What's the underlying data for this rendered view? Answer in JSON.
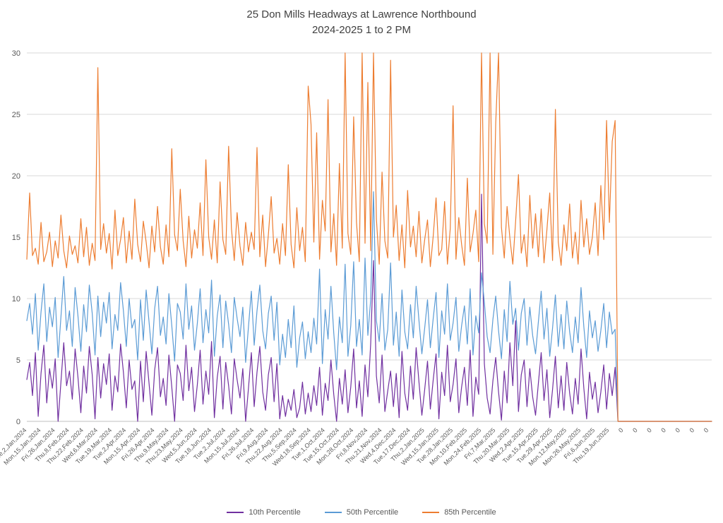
{
  "title": {
    "line1": "25 Don Mills Headways at Lawrence Northbound",
    "line2": "2024-2025 1 to 2 PM"
  },
  "chart_data": {
    "type": "line",
    "title": "25 Don Mills Headways at Lawrence Northbound 2024-2025 1 to 2 PM",
    "xlabel": "",
    "ylabel": "",
    "ylim": [
      0,
      30
    ],
    "y_ticks": [
      0,
      5,
      10,
      15,
      20,
      25,
      30
    ],
    "grid": true,
    "legend_position": "bottom",
    "n_points": 242,
    "x_tick_indices": [
      0,
      5,
      10,
      15,
      20,
      25,
      30,
      35,
      40,
      45,
      50,
      55,
      60,
      65,
      70,
      75,
      80,
      85,
      90,
      95,
      100,
      105,
      110,
      115,
      120,
      125,
      130,
      135,
      140,
      145,
      150,
      155,
      160,
      165,
      170,
      175,
      180,
      185,
      190,
      195,
      200,
      205,
      210,
      215,
      220,
      225,
      230,
      235,
      240
    ],
    "x_tick_labels": [
      "Tue,2,Jan,2024",
      "Mon,15,Jan,2024",
      "Fri,26,Jan,2024",
      "Thu,8,Feb,2024",
      "Thu,22,Feb,2024",
      "Wed,6,Mar,2024",
      "Tue,19,Mar,2024",
      "Tue,2,Apr,2024",
      "Mon,15,Apr,2024",
      "Fri,26,Apr,2024",
      "Thu,9,May,2024",
      "Thu,23,May,2024",
      "Wed,5,Jun,2024",
      "Tue,18,Jun,2024",
      "Tue,2,Jul,2024",
      "Mon,15,Jul,2024",
      "Fri,26,Jul,2024",
      "Fri,9,Aug,2024",
      "Thu,22,Aug,2024",
      "Thu,5,Sep,2024",
      "Wed,18,Sep,2024",
      "Tue,1,Oct,2024",
      "Tue,15,Oct,2024",
      "Mon,28,Oct,2024",
      "Fri,8,Nov,2024",
      "Thu,21,Nov,2024",
      "Wed,4,Dec,2024",
      "Tue,17,Dec,2024",
      "Thu,2,Jan,2025",
      "Wed,15,Jan,2025",
      "Tue,28,Jan,2025",
      "Mon,10,Feb,2025",
      "Mon,24,Feb,2025",
      "Fri,7,Mar,2025",
      "Thu,20,Mar,2025",
      "Wed,2,Apr,2025",
      "Tue,15,Apr,2025",
      "Tue,29,Apr,2025",
      "Mon,12,May,2025",
      "Mon,26,May,2025",
      "Fri,6,Jun,2025",
      "Thu,19,Jun,2025",
      "0",
      "0",
      "0",
      "0",
      "0",
      "0",
      "0"
    ],
    "series": [
      {
        "name": "10th Percentile",
        "color": "#7030A0",
        "values": [
          3.4,
          4.8,
          2.1,
          5.6,
          0.4,
          3.9,
          6.2,
          1.5,
          4.3,
          2.7,
          5.1,
          0,
          3.2,
          6.4,
          2.9,
          4.1,
          1.8,
          5.9,
          3.6,
          0.7,
          4.5,
          2.3,
          6.1,
          3.8,
          0.2,
          5.2,
          1.9,
          4.7,
          3.0,
          5.5,
          0.9,
          3.7,
          2.4,
          6.3,
          4.0,
          1.1,
          5.0,
          2.6,
          3.3,
          0,
          4.9,
          1.6,
          5.7,
          3.1,
          0.5,
          4.2,
          6.0,
          2.0,
          3.5,
          1.3,
          5.4,
          2.8,
          0,
          4.6,
          3.9,
          1.7,
          6.2,
          2.5,
          4.4,
          0.8,
          3.0,
          5.8,
          1.4,
          4.1,
          2.2,
          6.5,
          0.3,
          3.6,
          5.3,
          1.0,
          4.8,
          2.9,
          0.6,
          5.1,
          3.4,
          1.9,
          4.3,
          0,
          2.7,
          5.6,
          1.2,
          4.0,
          6.1,
          2.4,
          0.9,
          3.8,
          5.2,
          1.6,
          4.7,
          0.2,
          2.1,
          0.4,
          1.8,
          0.9,
          2.6,
          0.3,
          1.1,
          3.2,
          0.6,
          2.3,
          0.8,
          2.9,
          1.3,
          4.4,
          0.5,
          3.1,
          1.7,
          5.0,
          2.2,
          0,
          3.5,
          1.4,
          4.2,
          0.7,
          2.8,
          5.9,
          1.1,
          3.3,
          0.4,
          4.6,
          2.0,
          6.3,
          13.1,
          3.7,
          1.5,
          5.4,
          0.8,
          2.5,
          4.1,
          1.2,
          3.9,
          0.3,
          5.7,
          2.3,
          0.9,
          4.5,
          1.8,
          6.0,
          3.2,
          0.5,
          2.6,
          4.9,
          1.0,
          3.4,
          5.5,
          0.2,
          4.0,
          2.1,
          6.2,
          1.6,
          3.0,
          5.1,
          0.7,
          2.8,
          4.4,
          1.3,
          5.8,
          0.4,
          3.6,
          2.2,
          18.5,
          4.7,
          1.9,
          0.6,
          3.3,
          5.2,
          2.4,
          0.1,
          4.1,
          1.5,
          6.4,
          2.9,
          8.2,
          0.8,
          3.8,
          5.0,
          1.2,
          4.3,
          2.0,
          0.5,
          3.1,
          5.6,
          1.7,
          4.2,
          0.3,
          2.6,
          5.3,
          1.1,
          3.7,
          0.9,
          4.8,
          2.3,
          0.6,
          3.5,
          1.4,
          5.9,
          2.7,
          0.2,
          4.0,
          1.8,
          3.2,
          0.7,
          2.4,
          4.6,
          1.0,
          3.9,
          2.1,
          4.4,
          0,
          0,
          0,
          0,
          0,
          0,
          0,
          0,
          0,
          0,
          0,
          0,
          0,
          0,
          0,
          0,
          0,
          0,
          0,
          0,
          0,
          0,
          0,
          0,
          0,
          0,
          0,
          0,
          0,
          0,
          0,
          0,
          0,
          0
        ]
      },
      {
        "name": "50th Percentile",
        "color": "#5B9BD5",
        "values": [
          8.2,
          9.6,
          7.1,
          10.4,
          5.8,
          8.9,
          11.2,
          6.5,
          9.3,
          7.7,
          10.1,
          5.2,
          8.5,
          11.8,
          7.4,
          9.0,
          6.1,
          10.9,
          8.6,
          5.7,
          9.5,
          7.3,
          11.1,
          8.8,
          5.4,
          10.2,
          6.9,
          9.7,
          8.0,
          10.5,
          5.9,
          8.7,
          7.4,
          11.3,
          9.0,
          6.1,
          10.0,
          7.6,
          8.3,
          5.0,
          9.9,
          6.6,
          10.7,
          8.1,
          5.5,
          9.2,
          11.0,
          7.0,
          8.5,
          6.3,
          10.4,
          7.8,
          4.9,
          9.6,
          8.9,
          6.7,
          11.2,
          7.5,
          9.4,
          5.8,
          8.0,
          10.8,
          6.4,
          9.1,
          7.2,
          11.5,
          5.3,
          8.6,
          10.3,
          6.0,
          9.8,
          7.9,
          5.6,
          10.1,
          8.4,
          6.9,
          9.3,
          4.8,
          7.7,
          10.6,
          6.2,
          9.0,
          11.1,
          7.4,
          5.9,
          8.8,
          10.2,
          6.6,
          9.7,
          4.6,
          7.1,
          5.2,
          8.3,
          6.0,
          9.4,
          4.4,
          6.8,
          8.1,
          5.1,
          7.3,
          5.6,
          8.4,
          6.3,
          12.4,
          4.7,
          9.1,
          6.7,
          11.0,
          7.2,
          4.2,
          8.5,
          6.4,
          12.8,
          5.3,
          7.8,
          13.0,
          6.1,
          8.3,
          5.4,
          13.3,
          7.0,
          9.9,
          18.7,
          8.2,
          6.5,
          10.4,
          5.8,
          7.5,
          12.9,
          6.2,
          8.9,
          5.3,
          10.7,
          7.3,
          5.9,
          9.5,
          6.8,
          11.0,
          8.2,
          5.5,
          7.6,
          9.9,
          6.0,
          8.4,
          10.5,
          5.2,
          9.0,
          7.1,
          11.2,
          6.6,
          8.0,
          10.1,
          5.7,
          7.8,
          9.4,
          6.3,
          10.8,
          5.4,
          8.6,
          7.2,
          12.1,
          9.7,
          6.9,
          5.6,
          8.3,
          10.2,
          7.4,
          5.1,
          9.1,
          6.5,
          11.4,
          7.9,
          9.2,
          5.8,
          8.8,
          10.0,
          6.2,
          9.3,
          7.0,
          5.5,
          8.1,
          10.6,
          6.7,
          9.2,
          5.3,
          7.6,
          10.3,
          6.1,
          8.7,
          5.9,
          9.8,
          7.3,
          5.6,
          8.5,
          6.4,
          10.9,
          7.7,
          5.2,
          9.0,
          6.8,
          8.2,
          5.7,
          7.4,
          9.6,
          6.0,
          8.9,
          7.1,
          7.5,
          0,
          0,
          0,
          0,
          0,
          0,
          0,
          0,
          0,
          0,
          0,
          0,
          0,
          0,
          0,
          0,
          0,
          0,
          0,
          0,
          0,
          0,
          0,
          0,
          0,
          0,
          0,
          0,
          0,
          0,
          0,
          0,
          0,
          0
        ]
      },
      {
        "name": "85th Percentile",
        "color": "#ED7D31",
        "values": [
          13.2,
          18.6,
          13.5,
          14.1,
          12.8,
          16.2,
          13.0,
          13.8,
          15.4,
          12.6,
          14.7,
          13.3,
          16.8,
          13.9,
          12.5,
          15.1,
          13.6,
          14.3,
          12.9,
          16.5,
          13.4,
          15.8,
          12.7,
          14.5,
          13.1,
          28.8,
          14.0,
          16.1,
          13.7,
          15.3,
          12.4,
          17.2,
          13.5,
          14.8,
          16.6,
          12.9,
          15.5,
          13.2,
          18.1,
          14.4,
          13.0,
          16.3,
          14.6,
          12.5,
          15.9,
          13.8,
          17.5,
          14.2,
          12.8,
          16.0,
          13.4,
          22.2,
          15.2,
          13.9,
          18.9,
          14.7,
          12.6,
          16.7,
          13.3,
          15.6,
          14.1,
          17.8,
          13.5,
          21.3,
          15.0,
          13.2,
          16.4,
          12.9,
          19.5,
          14.8,
          13.6,
          22.4,
          15.7,
          13.1,
          17.0,
          14.3,
          12.7,
          16.2,
          13.8,
          15.4,
          14.0,
          22.3,
          13.4,
          16.8,
          12.6,
          15.2,
          18.3,
          13.7,
          14.9,
          12.8,
          16.1,
          13.5,
          20.9,
          14.4,
          12.5,
          17.4,
          13.9,
          15.8,
          13.0,
          27.3,
          24.2,
          14.6,
          23.5,
          13.2,
          18.0,
          15.5,
          26.2,
          13.8,
          16.9,
          12.7,
          21.0,
          14.1,
          30,
          15.3,
          13.6,
          24.8,
          16.2,
          13.0,
          30,
          14.5,
          27.6,
          13.9,
          30,
          16.5,
          12.8,
          20.3,
          14.7,
          13.3,
          29.4,
          15.0,
          17.6,
          13.1,
          16.0,
          12.5,
          18.8,
          14.2,
          15.9,
          13.4,
          17.1,
          12.9,
          14.8,
          16.4,
          12.6,
          15.1,
          18.2,
          13.5,
          14.0,
          17.9,
          12.8,
          15.7,
          25.7,
          13.2,
          16.6,
          14.4,
          12.7,
          19.8,
          13.8,
          15.3,
          17.2,
          13.0,
          30,
          16.1,
          14.5,
          30,
          13.6,
          24.3,
          30,
          15.8,
          13.3,
          17.5,
          14.9,
          12.8,
          16.3,
          20.1,
          13.7,
          15.2,
          12.6,
          18.4,
          14.1,
          16.9,
          13.4,
          17.3,
          12.9,
          15.6,
          18.6,
          13.1,
          25.4,
          14.6,
          12.7,
          16.0,
          13.9,
          17.7,
          13.3,
          15.4,
          12.8,
          18.0,
          14.2,
          16.5,
          13.6,
          15.0,
          17.8,
          13.5,
          19.2,
          14.8,
          24.5,
          16.2,
          22.8,
          24.5,
          0,
          0,
          0,
          0,
          0,
          0,
          0,
          0,
          0,
          0,
          0,
          0,
          0,
          0,
          0,
          0,
          0,
          0,
          0,
          0,
          0,
          0,
          0,
          0,
          0,
          0,
          0,
          0,
          0,
          0,
          0,
          0,
          0,
          0
        ]
      }
    ],
    "colors": {
      "gridline": "#D9D9D9",
      "axis_line": "#BFBFBF",
      "tick_label": "#595959",
      "title": "#404040"
    }
  }
}
